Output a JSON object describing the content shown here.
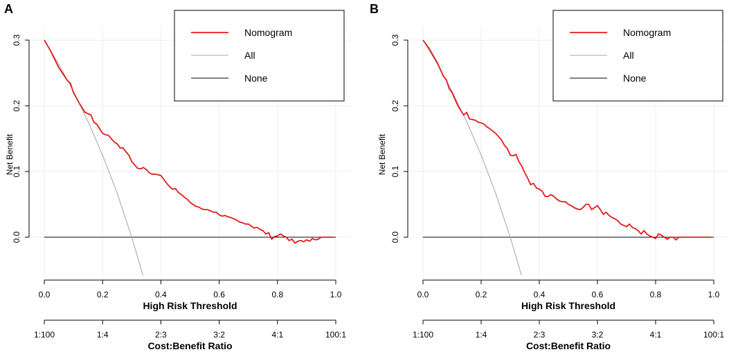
{
  "chart_data": [
    {
      "panel_label": "A",
      "type": "line",
      "ylabel": "Net Benefit",
      "xlabel": "High Risk Threshold",
      "xlim": [
        0,
        1
      ],
      "ylim": [
        -0.065,
        0.3
      ],
      "x_ticks": [
        "0.0",
        "0.2",
        "0.4",
        "0.6",
        "0.8",
        "1.0"
      ],
      "y_ticks": [
        "0.0",
        "0.1",
        "0.2",
        "0.3"
      ],
      "secondary_axis": {
        "title": "Cost:Benefit Ratio",
        "ticks": [
          "1:100",
          "1:4",
          "2:3",
          "3:2",
          "4:1",
          "100:1"
        ]
      },
      "grid": true,
      "legend_position": "top-right",
      "series": [
        {
          "name": "Nomogram",
          "color": "#e31a1c",
          "x": [
            0.0,
            0.02,
            0.05,
            0.08,
            0.09,
            0.1,
            0.12,
            0.14,
            0.16,
            0.17,
            0.18,
            0.2,
            0.21,
            0.22,
            0.24,
            0.25,
            0.26,
            0.27,
            0.28,
            0.29,
            0.3,
            0.31,
            0.32,
            0.33,
            0.34,
            0.35,
            0.36,
            0.37,
            0.38,
            0.4,
            0.41,
            0.42,
            0.43,
            0.44,
            0.45,
            0.46,
            0.47,
            0.48,
            0.49,
            0.5,
            0.51,
            0.52,
            0.53,
            0.54,
            0.55,
            0.56,
            0.57,
            0.58,
            0.59,
            0.6,
            0.61,
            0.62,
            0.63,
            0.64,
            0.65,
            0.66,
            0.67,
            0.68,
            0.69,
            0.7,
            0.71,
            0.72,
            0.73,
            0.74,
            0.75,
            0.76,
            0.77,
            0.78,
            0.79,
            0.8,
            0.81,
            0.82,
            0.83,
            0.84,
            0.85,
            0.86,
            0.87,
            0.88,
            0.89,
            0.9,
            0.91,
            0.92,
            0.93,
            0.94,
            0.95,
            0.96,
            0.97,
            0.98,
            0.99
          ],
          "y": [
            0.3,
            0.285,
            0.258,
            0.238,
            0.234,
            0.22,
            0.204,
            0.19,
            0.186,
            0.175,
            0.172,
            0.158,
            0.156,
            0.155,
            0.145,
            0.142,
            0.136,
            0.136,
            0.13,
            0.125,
            0.115,
            0.11,
            0.105,
            0.104,
            0.106,
            0.103,
            0.098,
            0.096,
            0.096,
            0.094,
            0.088,
            0.082,
            0.077,
            0.073,
            0.074,
            0.068,
            0.065,
            0.061,
            0.058,
            0.053,
            0.05,
            0.047,
            0.046,
            0.043,
            0.042,
            0.042,
            0.04,
            0.038,
            0.038,
            0.034,
            0.032,
            0.033,
            0.031,
            0.03,
            0.028,
            0.026,
            0.023,
            0.022,
            0.02,
            0.02,
            0.017,
            0.014,
            0.015,
            0.012,
            0.01,
            0.005,
            0.007,
            -0.003,
            0.001,
            0.002,
            0.005,
            0.002,
            0.0,
            -0.005,
            -0.003,
            -0.009,
            -0.006,
            -0.005,
            -0.007,
            -0.004,
            -0.006,
            -0.002,
            -0.004,
            -0.003,
            0.0,
            0.0,
            0.0,
            0.0,
            0.0
          ]
        },
        {
          "name": "All",
          "color": "#a9a9a9",
          "x": [
            0.0,
            0.05,
            0.1,
            0.15,
            0.2,
            0.25,
            0.3,
            0.33,
            0.3385
          ],
          "y": [
            0.3,
            0.263,
            0.222,
            0.176,
            0.125,
            0.067,
            0.0,
            -0.045,
            -0.058
          ]
        },
        {
          "name": "None",
          "color": "#000000",
          "x": [
            0,
            1
          ],
          "y": [
            0,
            0
          ]
        }
      ]
    },
    {
      "panel_label": "B",
      "type": "line",
      "ylabel": "Net Benefit",
      "xlabel": "High Risk Threshold",
      "xlim": [
        0,
        1
      ],
      "ylim": [
        -0.065,
        0.3
      ],
      "x_ticks": [
        "0.0",
        "0.2",
        "0.4",
        "0.6",
        "0.8",
        "1.0"
      ],
      "y_ticks": [
        "0.0",
        "0.1",
        "0.2",
        "0.3"
      ],
      "secondary_axis": {
        "title": "Cost:Benefit Ratio",
        "ticks": [
          "1:100",
          "1:4",
          "2:3",
          "3:2",
          "4:1",
          "100:1"
        ]
      },
      "grid": true,
      "legend_position": "top-right",
      "series": [
        {
          "name": "Nomogram",
          "color": "#e31a1c",
          "x": [
            0.0,
            0.02,
            0.05,
            0.07,
            0.08,
            0.09,
            0.1,
            0.12,
            0.14,
            0.15,
            0.16,
            0.18,
            0.19,
            0.2,
            0.21,
            0.22,
            0.23,
            0.25,
            0.27,
            0.28,
            0.29,
            0.3,
            0.31,
            0.32,
            0.33,
            0.34,
            0.35,
            0.36,
            0.37,
            0.38,
            0.39,
            0.4,
            0.41,
            0.42,
            0.43,
            0.44,
            0.45,
            0.46,
            0.47,
            0.48,
            0.49,
            0.5,
            0.51,
            0.52,
            0.53,
            0.54,
            0.55,
            0.56,
            0.57,
            0.58,
            0.59,
            0.6,
            0.61,
            0.62,
            0.63,
            0.64,
            0.65,
            0.66,
            0.67,
            0.68,
            0.69,
            0.7,
            0.71,
            0.72,
            0.73,
            0.74,
            0.75,
            0.76,
            0.77,
            0.78,
            0.79,
            0.8,
            0.81,
            0.82,
            0.83,
            0.84,
            0.85,
            0.86,
            0.87,
            0.88,
            0.89,
            0.9,
            0.91,
            0.92,
            0.93,
            0.94,
            0.95,
            0.96,
            0.97,
            0.98,
            0.99
          ],
          "y": [
            0.3,
            0.288,
            0.265,
            0.245,
            0.24,
            0.226,
            0.22,
            0.2,
            0.186,
            0.19,
            0.18,
            0.178,
            0.175,
            0.174,
            0.172,
            0.168,
            0.165,
            0.158,
            0.148,
            0.14,
            0.135,
            0.125,
            0.124,
            0.126,
            0.115,
            0.108,
            0.098,
            0.09,
            0.08,
            0.082,
            0.075,
            0.073,
            0.07,
            0.062,
            0.062,
            0.065,
            0.062,
            0.058,
            0.055,
            0.054,
            0.054,
            0.05,
            0.048,
            0.045,
            0.043,
            0.042,
            0.045,
            0.05,
            0.05,
            0.042,
            0.045,
            0.048,
            0.042,
            0.035,
            0.038,
            0.033,
            0.03,
            0.028,
            0.025,
            0.02,
            0.018,
            0.016,
            0.02,
            0.015,
            0.013,
            0.01,
            0.005,
            0.01,
            0.005,
            0.002,
            0.0,
            -0.002,
            0.005,
            0.003,
            0.0,
            -0.003,
            0.0,
            0.0,
            -0.004,
            0.0,
            0.0,
            0.0,
            0.0,
            0.0,
            0.0,
            0.0,
            0.0,
            0.0,
            0.0,
            0.0,
            0.0
          ]
        },
        {
          "name": "All",
          "color": "#a9a9a9",
          "x": [
            0.0,
            0.05,
            0.1,
            0.15,
            0.2,
            0.25,
            0.3,
            0.33,
            0.3385
          ],
          "y": [
            0.3,
            0.263,
            0.222,
            0.176,
            0.125,
            0.067,
            0.0,
            -0.045,
            -0.058
          ]
        },
        {
          "name": "None",
          "color": "#000000",
          "x": [
            0,
            1
          ],
          "y": [
            0,
            0
          ]
        }
      ]
    }
  ]
}
